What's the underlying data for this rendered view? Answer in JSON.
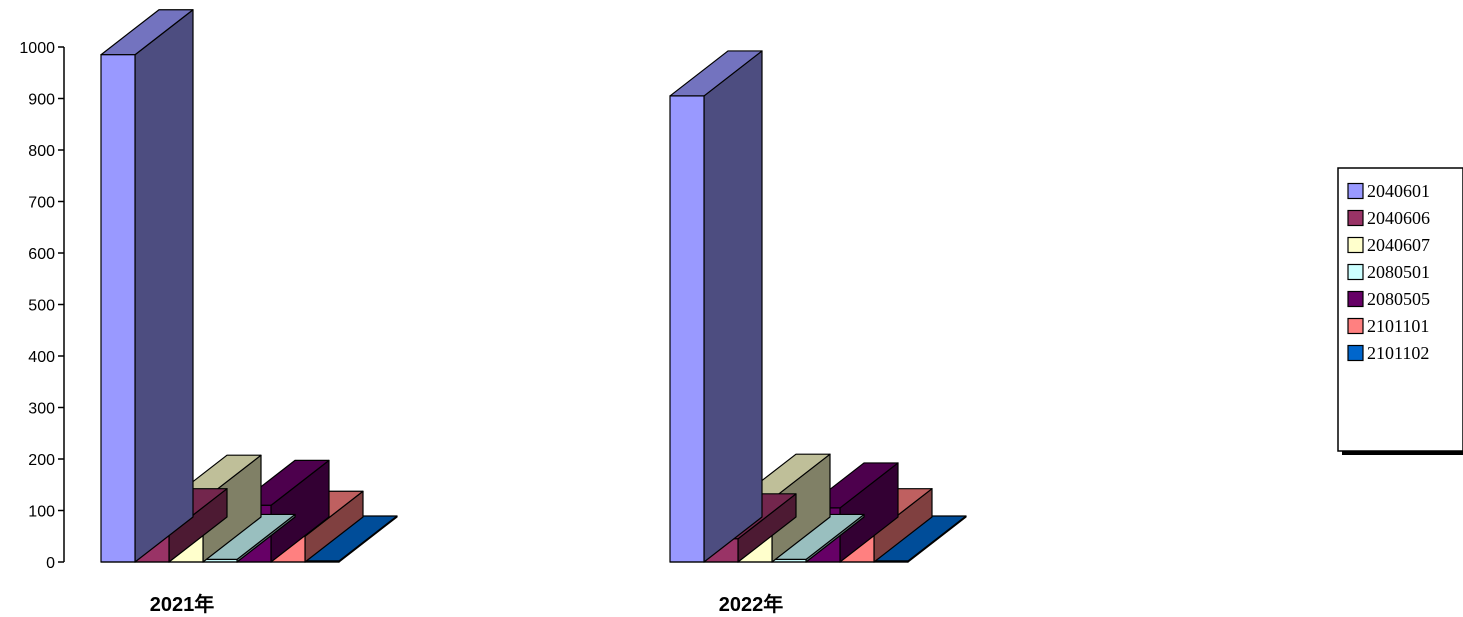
{
  "chart_data": {
    "type": "bar",
    "categories": [
      "2021年",
      "2022年"
    ],
    "series": [
      {
        "name": "2040601",
        "values": [
          985,
          905
        ],
        "color": "#9999FF"
      },
      {
        "name": "2040606",
        "values": [
          55,
          45
        ],
        "color": "#993366"
      },
      {
        "name": "2040607",
        "values": [
          120,
          122
        ],
        "color": "#FFFFCC"
      },
      {
        "name": "2080501",
        "values": [
          5,
          5
        ],
        "color": "#CCFFFF"
      },
      {
        "name": "2080505",
        "values": [
          110,
          105
        ],
        "color": "#660066"
      },
      {
        "name": "2101101",
        "values": [
          50,
          55
        ],
        "color": "#FF8080"
      },
      {
        "name": "2101102",
        "values": [
          2,
          2
        ],
        "color": "#0066CC"
      }
    ],
    "title": "",
    "xlabel": "",
    "ylabel": "",
    "ylim": [
      0,
      1000
    ],
    "yticks": [
      "0",
      "100",
      "200",
      "300",
      "400",
      "500",
      "600",
      "700",
      "800",
      "900",
      "1000"
    ],
    "three_d": true,
    "grid": false,
    "legend_position": "right"
  }
}
